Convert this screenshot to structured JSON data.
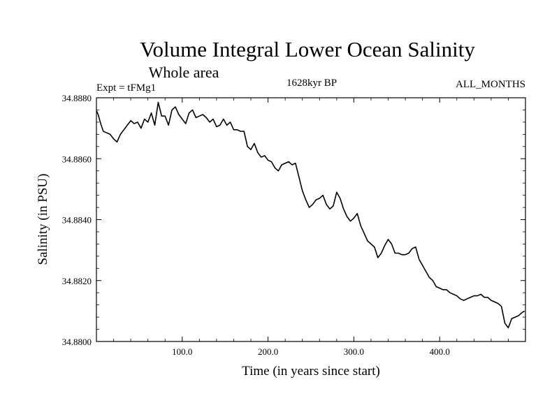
{
  "header": {
    "title": "Volume Integral Lower Ocean Salinity",
    "subtitle": "Whole area",
    "left": "Expt = tFMg1",
    "center": "1628kyr BP",
    "right": "ALL_MONTHS"
  },
  "chart_data": {
    "type": "line",
    "title": "Volume Integral Lower Ocean Salinity",
    "xlabel": "Time (in years since start)",
    "ylabel": "Salinity (in PSU)",
    "xlim": [
      0,
      500
    ],
    "ylim": [
      34.88,
      34.888
    ],
    "x_ticks": [
      100,
      200,
      300,
      400
    ],
    "x_tick_labels": [
      "100.0",
      "200.0",
      "300.0",
      "400.0"
    ],
    "y_ticks": [
      34.88,
      34.882,
      34.884,
      34.886,
      34.888
    ],
    "y_tick_labels": [
      "34.8800",
      "34.8820",
      "34.8840",
      "34.8860",
      "34.8880"
    ],
    "grid": false,
    "series": [
      {
        "name": "Salinity",
        "x": [
          0,
          2,
          5,
          8,
          12,
          16,
          20,
          24,
          28,
          32,
          36,
          40,
          44,
          48,
          52,
          56,
          60,
          64,
          68,
          72,
          76,
          80,
          84,
          88,
          92,
          96,
          100,
          104,
          108,
          112,
          116,
          120,
          124,
          128,
          132,
          136,
          140,
          144,
          148,
          152,
          156,
          160,
          164,
          168,
          172,
          176,
          180,
          184,
          188,
          192,
          196,
          200,
          204,
          208,
          212,
          216,
          220,
          224,
          228,
          232,
          236,
          240,
          244,
          248,
          252,
          256,
          260,
          264,
          268,
          272,
          276,
          280,
          284,
          288,
          292,
          296,
          300,
          304,
          308,
          312,
          316,
          320,
          324,
          328,
          332,
          336,
          340,
          344,
          348,
          352,
          356,
          360,
          364,
          368,
          372,
          376,
          380,
          384,
          388,
          392,
          396,
          400,
          404,
          408,
          412,
          416,
          420,
          424,
          428,
          432,
          436,
          440,
          444,
          448,
          452,
          456,
          460,
          464,
          468,
          472,
          476,
          480,
          484,
          488,
          492,
          496,
          499
        ],
        "values": [
          34.88758,
          34.88745,
          34.88715,
          34.8869,
          34.88685,
          34.8868,
          34.88665,
          34.88655,
          34.8868,
          34.88695,
          34.8871,
          34.88725,
          34.88715,
          34.8872,
          34.887,
          34.8873,
          34.8872,
          34.8875,
          34.8871,
          34.88785,
          34.8874,
          34.8874,
          34.8871,
          34.8876,
          34.8877,
          34.88745,
          34.8873,
          34.88715,
          34.8875,
          34.8876,
          34.88735,
          34.8874,
          34.88745,
          34.88735,
          34.8872,
          34.8873,
          34.88705,
          34.8871,
          34.8873,
          34.8871,
          34.8872,
          34.88695,
          34.88695,
          34.8869,
          34.8869,
          34.8864,
          34.8863,
          34.8865,
          34.8862,
          34.88605,
          34.8861,
          34.88595,
          34.8859,
          34.8857,
          34.8856,
          34.8858,
          34.88585,
          34.8859,
          34.8858,
          34.88585,
          34.8854,
          34.88495,
          34.88465,
          34.8844,
          34.8845,
          34.88465,
          34.8847,
          34.8848,
          34.8845,
          34.88435,
          34.88445,
          34.8849,
          34.8847,
          34.88435,
          34.8841,
          34.88395,
          34.88405,
          34.8842,
          34.8838,
          34.88355,
          34.8833,
          34.8832,
          34.8831,
          34.88275,
          34.8829,
          34.88315,
          34.88335,
          34.8832,
          34.8829,
          34.8829,
          34.88285,
          34.88285,
          34.8829,
          34.88305,
          34.8831,
          34.8827,
          34.8825,
          34.8823,
          34.8821,
          34.882,
          34.8818,
          34.88175,
          34.8817,
          34.8817,
          34.8816,
          34.88155,
          34.8815,
          34.8814,
          34.88135,
          34.8814,
          34.88145,
          34.8815,
          34.8815,
          34.88155,
          34.88145,
          34.88145,
          34.88135,
          34.8813,
          34.88125,
          34.88115,
          34.8806,
          34.88045,
          34.88075,
          34.8808,
          34.88085,
          34.88095,
          34.881
        ]
      }
    ]
  }
}
